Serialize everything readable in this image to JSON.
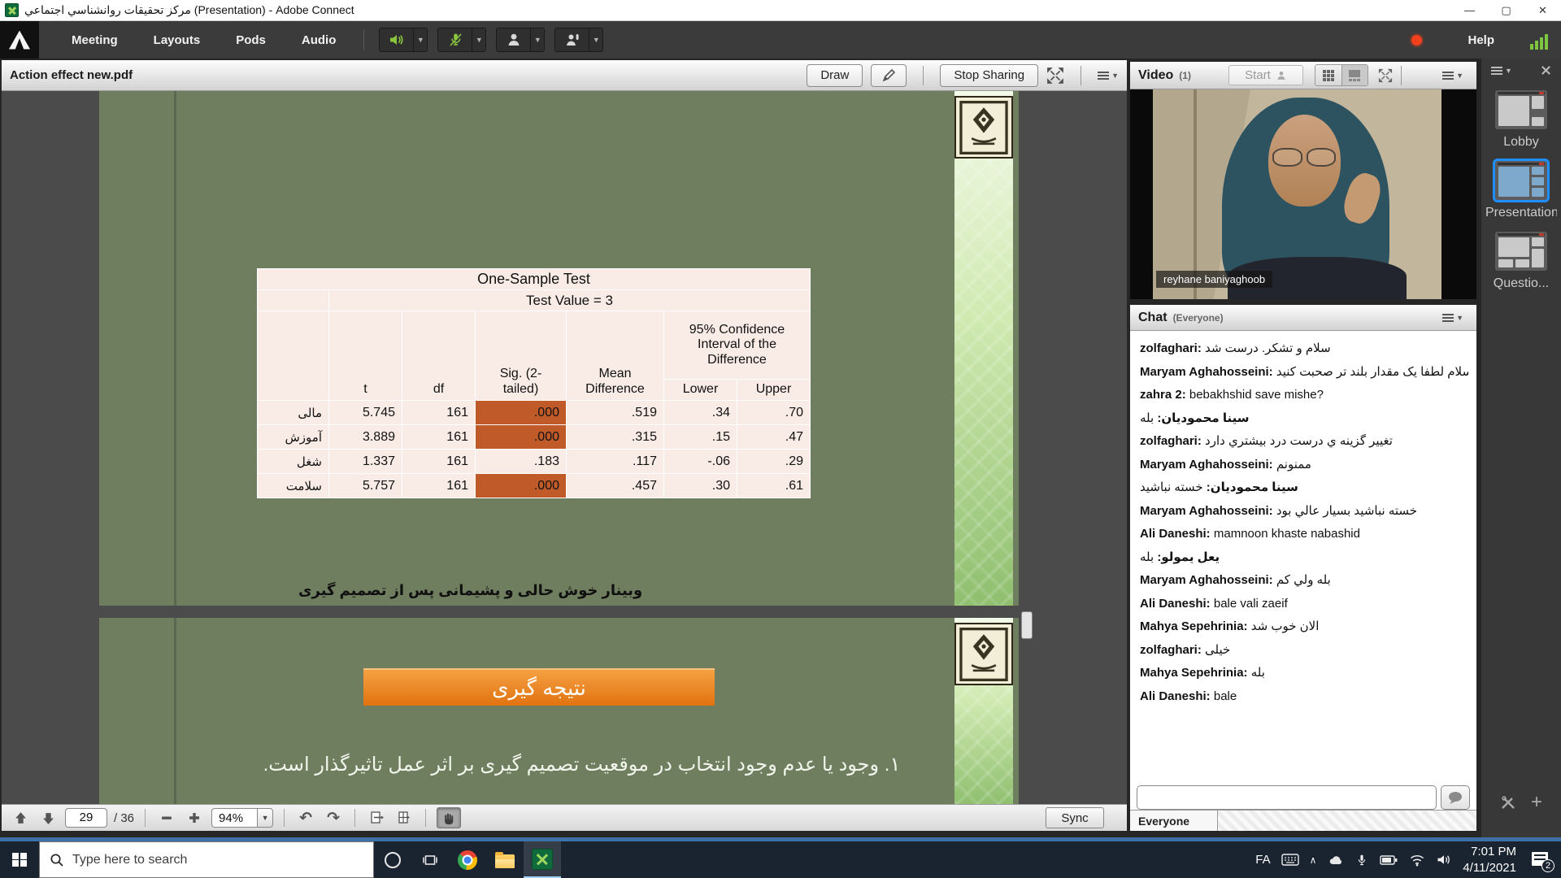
{
  "titlebar": {
    "title": "مركز تحقيقات روانشناسي اجتماعي (Presentation) - Adobe Connect",
    "minimize": "—",
    "maximize": "▢",
    "close": "✕"
  },
  "menubar": {
    "items": [
      "Meeting",
      "Layouts",
      "Pods",
      "Audio"
    ],
    "help_label": "Help"
  },
  "share_pod": {
    "title": "Action effect new.pdf",
    "draw_label": "Draw",
    "stop_sharing_label": "Stop Sharing",
    "footer": {
      "page": "29",
      "page_total": "/ 36",
      "zoom": "94%",
      "sync_label": "Sync"
    }
  },
  "slide1": {
    "footer_text": "وبینار خوش حالی و پشیمانی پس از تصمیم گیری",
    "table": {
      "title": "One-Sample Test",
      "subtitle": "Test Value = 3",
      "headers": {
        "t": "t",
        "df": "df",
        "sig": "Sig. (2-tailed)",
        "mean_diff": "Mean Difference",
        "ci": "95% Confidence Interval of the Difference",
        "lower": "Lower",
        "upper": "Upper"
      },
      "rows": [
        {
          "label": "مالی",
          "t": "5.745",
          "df": "161",
          "sig": ".000",
          "highlight": true,
          "mean_diff": ".519",
          "lower": ".34",
          "upper": ".70"
        },
        {
          "label": "آموزش",
          "t": "3.889",
          "df": "161",
          "sig": ".000",
          "highlight": true,
          "mean_diff": ".315",
          "lower": ".15",
          "upper": ".47"
        },
        {
          "label": "شغل",
          "t": "1.337",
          "df": "161",
          "sig": ".183",
          "highlight": false,
          "mean_diff": ".117",
          "lower": "-.06",
          "upper": ".29"
        },
        {
          "label": "سلامت",
          "t": "5.757",
          "df": "161",
          "sig": ".000",
          "highlight": true,
          "mean_diff": ".457",
          "lower": ".30",
          "upper": ".61"
        }
      ]
    }
  },
  "slide2": {
    "banner": "نتیجه گیری",
    "body_line": "۱. وجود یا عدم وجود انتخاب در موقعیت تصمیم گیری بر  اثر عمل تاثیرگذار است."
  },
  "video_pod": {
    "title": "Video",
    "count": "(1)",
    "start_label": "Start",
    "name_label": "reyhane baniyaghoob"
  },
  "chat_pod": {
    "title": "Chat",
    "scope": "(Everyone)",
    "everyone_tab": "Everyone",
    "messages": [
      {
        "name": "zolfaghari",
        "text": "سلام و تشكر. درست شد",
        "dir": "ltr"
      },
      {
        "name": "Maryam Aghahosseini",
        "text": "سلام لطفا یک مقدار بلند تر صحبت کنید",
        "dir": "ltr"
      },
      {
        "name": "zahra 2",
        "text": "bebakhshid save mishe?",
        "dir": "ltr"
      },
      {
        "name": "سینا محمودیان",
        "text": "بله",
        "dir": "rtl"
      },
      {
        "name": "zolfaghari",
        "text": "تغییر گزینه ي درست درد بیشتري دارد",
        "dir": "ltr"
      },
      {
        "name": "Maryam Aghahosseini",
        "text": "ممنونم",
        "dir": "ltr"
      },
      {
        "name": "سینا محمودیان",
        "text": "خسته نباشید",
        "dir": "rtl"
      },
      {
        "name": "Maryam Aghahosseini",
        "text": "خسته نباشید بسیار عالي بود",
        "dir": "ltr"
      },
      {
        "name": "Ali Daneshi",
        "text": "mamnoon khaste nabashid",
        "dir": "ltr"
      },
      {
        "name": "یعل یمولو",
        "text": "بله",
        "dir": "rtl"
      },
      {
        "name": "Maryam Aghahosseini",
        "text": "بله ولي كم",
        "dir": "ltr"
      },
      {
        "name": "Ali Daneshi",
        "text": "bale vali zaeif",
        "dir": "ltr"
      },
      {
        "name": "Mahya Sepehrinia",
        "text": "الان خوب شد",
        "dir": "ltr"
      },
      {
        "name": "zolfaghari",
        "text": "خیلی",
        "dir": "ltr"
      },
      {
        "name": "Mahya Sepehrinia",
        "text": "بله",
        "dir": "ltr"
      },
      {
        "name": "Ali Daneshi",
        "text": "bale",
        "dir": "ltr"
      }
    ]
  },
  "layout_bar": {
    "layouts": [
      {
        "label": "Lobby",
        "selected": false
      },
      {
        "label": "Presentation",
        "selected": true
      },
      {
        "label": "Questio...",
        "selected": false
      }
    ]
  },
  "taskbar": {
    "search_placeholder": "Type here to search",
    "lang": "FA",
    "time": "7:01 PM",
    "date": "4/11/2021",
    "notification_count": "2"
  },
  "colors": {
    "sig_highlight": "#c05a28",
    "slide_green": "#6f7e5e",
    "banner_orange": "#e1720f",
    "selected_layout_blue": "#1f8fff",
    "audio_icon_green": "#8cc63f"
  }
}
